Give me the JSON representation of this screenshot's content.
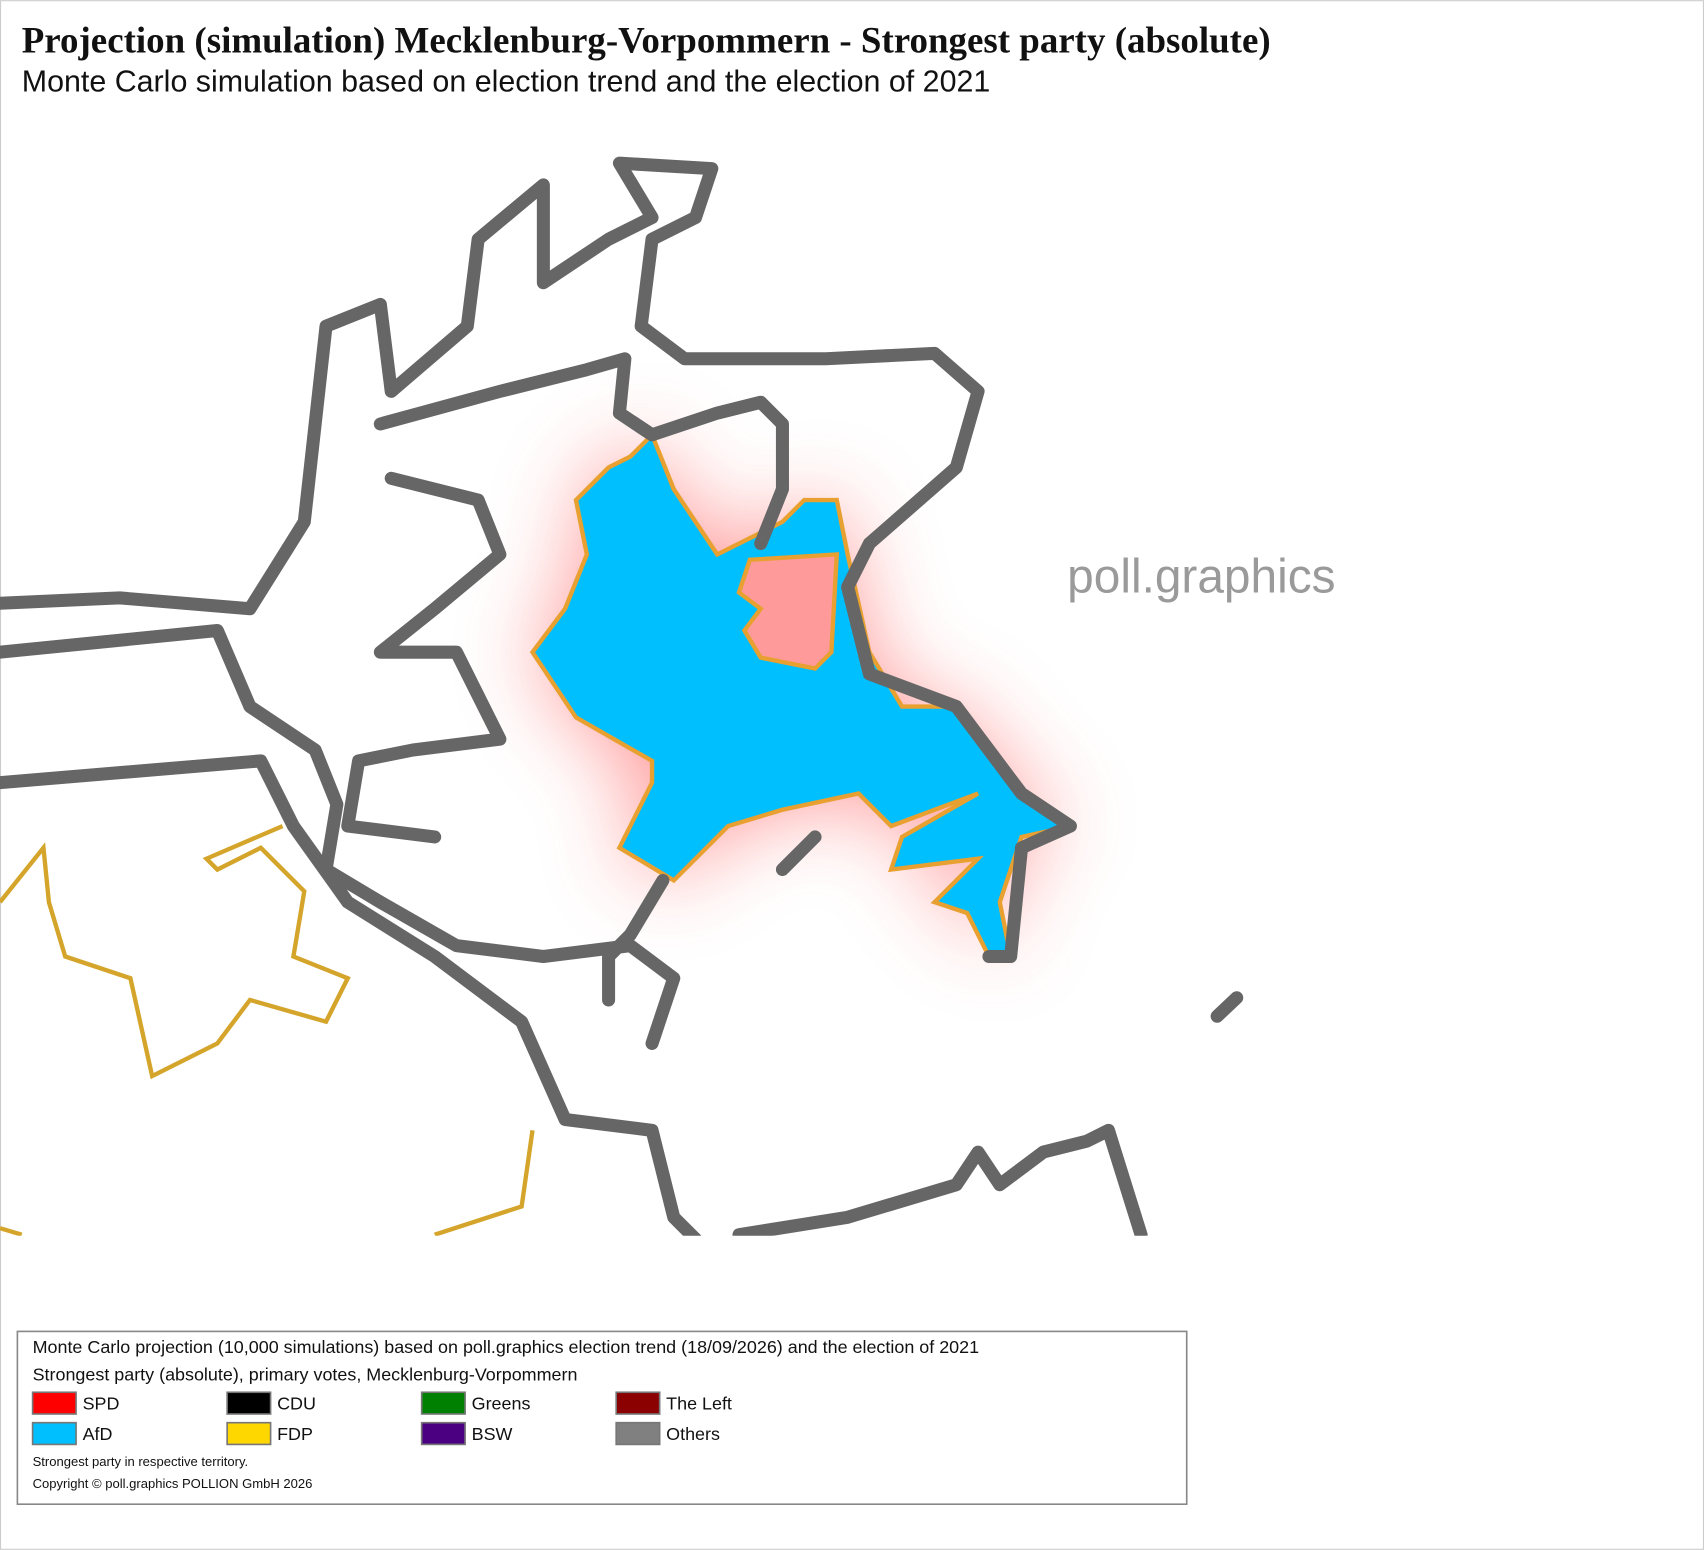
{
  "header": {
    "title": "Projection (simulation) Mecklenburg-Vorpommern - Strongest party (absolute)",
    "subtitle": "Monte Carlo simulation based on election trend and the election of 2021"
  },
  "watermark": "poll.graphics",
  "legend": {
    "lines": [
      "Monte Carlo projection (10,000 simulations) based on poll.graphics election trend (18/09/2026) and the election of 2021",
      "Strongest party (absolute), primary votes, Mecklenburg-Vorpommern"
    ],
    "items": [
      {
        "name": "SPD",
        "color": "#ff0000"
      },
      {
        "name": "CDU",
        "color": "#000000"
      },
      {
        "name": "Greens",
        "color": "#008000"
      },
      {
        "name": "The Left",
        "color": "#8b0000"
      },
      {
        "name": "AfD",
        "color": "#00bfff"
      },
      {
        "name": "FDP",
        "color": "#ffd700"
      },
      {
        "name": "BSW",
        "color": "#4b0082"
      },
      {
        "name": "Others",
        "color": "#808080"
      }
    ],
    "notes": [
      "Strongest party in respective territory.",
      "Copyright © poll.graphics POLLION GmbH 2026"
    ]
  }
}
